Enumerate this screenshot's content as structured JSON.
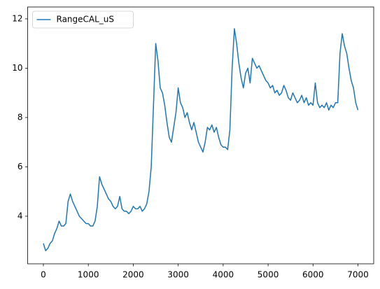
{
  "chart_data": {
    "type": "line",
    "x": [
      0,
      50,
      100,
      150,
      200,
      250,
      300,
      350,
      400,
      450,
      500,
      550,
      600,
      650,
      700,
      750,
      800,
      850,
      900,
      950,
      1000,
      1050,
      1100,
      1150,
      1200,
      1250,
      1300,
      1350,
      1400,
      1450,
      1500,
      1550,
      1600,
      1650,
      1700,
      1750,
      1800,
      1850,
      1900,
      1950,
      2000,
      2050,
      2100,
      2150,
      2200,
      2250,
      2300,
      2350,
      2400,
      2450,
      2500,
      2550,
      2600,
      2650,
      2700,
      2750,
      2800,
      2850,
      2900,
      2950,
      3000,
      3050,
      3100,
      3150,
      3200,
      3250,
      3300,
      3350,
      3400,
      3450,
      3500,
      3550,
      3600,
      3650,
      3700,
      3750,
      3800,
      3850,
      3900,
      3950,
      4000,
      4050,
      4100,
      4150,
      4200,
      4250,
      4300,
      4350,
      4400,
      4450,
      4500,
      4550,
      4600,
      4650,
      4700,
      4750,
      4800,
      4850,
      4900,
      4950,
      5000,
      5050,
      5100,
      5150,
      5200,
      5250,
      5300,
      5350,
      5400,
      5450,
      5500,
      5550,
      5600,
      5650,
      5700,
      5750,
      5800,
      5850,
      5900,
      5950,
      6000,
      6050,
      6100,
      6150,
      6200,
      6250,
      6300,
      6350,
      6400,
      6450,
      6500,
      6550,
      6600,
      6650,
      6700,
      6750,
      6800,
      6850,
      6900,
      6950,
      7000
    ],
    "series": [
      {
        "name": "RangeCAL_uS",
        "color": "#1f77b4",
        "values": [
          2.9,
          2.6,
          2.7,
          2.9,
          3.0,
          3.3,
          3.5,
          3.8,
          3.6,
          3.6,
          3.7,
          4.6,
          4.9,
          4.6,
          4.4,
          4.2,
          4.0,
          3.9,
          3.8,
          3.7,
          3.7,
          3.6,
          3.6,
          3.8,
          4.4,
          5.6,
          5.3,
          5.1,
          4.9,
          4.7,
          4.6,
          4.4,
          4.3,
          4.4,
          4.8,
          4.3,
          4.2,
          4.2,
          4.1,
          4.2,
          4.4,
          4.3,
          4.3,
          4.4,
          4.2,
          4.3,
          4.5,
          5.0,
          6.0,
          8.5,
          11.0,
          10.3,
          9.2,
          9.0,
          8.5,
          7.8,
          7.2,
          7.0,
          7.6,
          8.2,
          9.2,
          8.6,
          8.4,
          8.0,
          8.2,
          7.8,
          7.5,
          7.8,
          7.4,
          7.0,
          6.8,
          6.6,
          7.0,
          7.6,
          7.5,
          7.7,
          7.4,
          7.6,
          7.2,
          6.9,
          6.8,
          6.8,
          6.7,
          7.5,
          10.0,
          11.6,
          11.0,
          10.2,
          9.6,
          9.2,
          9.8,
          10.0,
          9.4,
          10.4,
          10.2,
          10.0,
          10.1,
          9.9,
          9.7,
          9.5,
          9.4,
          9.2,
          9.3,
          9.0,
          9.1,
          8.9,
          9.0,
          9.3,
          9.1,
          8.8,
          8.7,
          9.0,
          8.8,
          8.6,
          8.7,
          8.9,
          8.6,
          8.8,
          8.5,
          8.6,
          8.5,
          9.4,
          8.6,
          8.4,
          8.5,
          8.4,
          8.6,
          8.3,
          8.5,
          8.4,
          8.6,
          8.6,
          10.6,
          11.4,
          10.9,
          10.6,
          10.0,
          9.5,
          9.2,
          8.6,
          8.3
        ]
      }
    ],
    "xlim": [
      -350,
      7350
    ],
    "ylim": [
      2.07,
      12.48
    ],
    "xticks": [
      0,
      1000,
      2000,
      3000,
      4000,
      5000,
      6000,
      7000
    ],
    "yticks": [
      4,
      6,
      8,
      10,
      12
    ],
    "legend": "upper left",
    "grid": false
  }
}
